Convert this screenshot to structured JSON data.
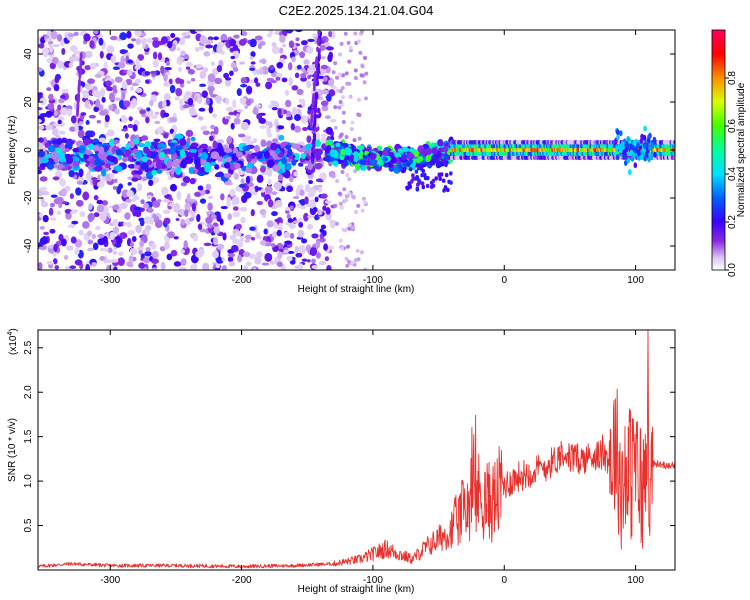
{
  "title": "C2E2.2025.134.21.04.G04",
  "chart_data": [
    {
      "type": "heatmap",
      "xlabel": "Height of straight line (km)",
      "ylabel": "Frequency (Hz)",
      "xlim": [
        -355,
        130
      ],
      "ylim": [
        -50,
        50
      ],
      "xticks": [
        -300,
        -200,
        -100,
        0,
        100
      ],
      "yticks": [
        -40,
        -20,
        0,
        20,
        40
      ],
      "colorbar": {
        "label": "Normalized spectral amplitude",
        "range": [
          0,
          1
        ],
        "ticks": [
          "0.0",
          "0.2",
          "0.4",
          "0.6",
          "0.8"
        ],
        "tick_values": [
          0,
          0.2,
          0.4,
          0.6,
          0.8
        ],
        "colormap": "rainbow (white at 0, violet/blue low, cyan, green, yellow, red, magenta at 1)"
      },
      "features": [
        {
          "description": "scattered low-amplitude noise",
          "x_range": [
            -355,
            -130
          ],
          "y_range": [
            -50,
            50
          ],
          "amplitude": 0.15
        },
        {
          "description": "diffuse band near 0 Hz",
          "x_range": [
            -355,
            -140
          ],
          "center_y": -3,
          "amplitude": 0.3
        },
        {
          "description": "near-vertical streak",
          "x_range": [
            -150,
            -140
          ],
          "y_range": [
            -5,
            50
          ],
          "amplitude": 0.15
        },
        {
          "description": "band centered near 0 Hz with scattered cyan/green clusters",
          "x_range": [
            -135,
            -40
          ],
          "center_y": 0,
          "amplitude": 0.5
        },
        {
          "description": "narrow high-amplitude band near 0 Hz",
          "x_range": [
            -40,
            125
          ],
          "center_y": 0,
          "amplitude": 0.9
        }
      ]
    },
    {
      "type": "line",
      "xlabel": "Height of straight line (km)",
      "ylabel": "SNR (10 * v/v)",
      "yscale_label": "(x10",
      "yscale_exp": "4",
      "xlim": [
        -355,
        130
      ],
      "ylim": [
        0,
        2.7
      ],
      "xticks": [
        -300,
        -200,
        -100,
        0,
        100
      ],
      "yticks": [
        "0.5",
        "1.0",
        "1.5",
        "2.0",
        "2.5"
      ],
      "ytick_values": [
        0.5,
        1.0,
        1.5,
        2.0,
        2.5
      ],
      "color": "#e8312c",
      "series": [
        {
          "envelope_x": [
            -355,
            -330,
            -300,
            -250,
            -200,
            -160,
            -130,
            -110,
            -100,
            -90,
            -80,
            -70,
            -60,
            -50,
            -40,
            -30,
            -25,
            -20,
            -10,
            0,
            10,
            20,
            30,
            40,
            45,
            50,
            60,
            70,
            80,
            85,
            90,
            95,
            100,
            105,
            110,
            115,
            120,
            130
          ],
          "envelope_y": [
            0.04,
            0.07,
            0.05,
            0.05,
            0.04,
            0.05,
            0.07,
            0.12,
            0.18,
            0.24,
            0.18,
            0.12,
            0.25,
            0.35,
            0.45,
            0.7,
            0.8,
            0.85,
            0.75,
            0.95,
            1.05,
            1.1,
            1.15,
            1.25,
            1.35,
            1.25,
            1.25,
            1.3,
            1.25,
            1.4,
            0.9,
            1.1,
            1.1,
            0.9,
            1.15,
            1.2,
            1.18,
            1.18
          ]
        }
      ]
    }
  ]
}
